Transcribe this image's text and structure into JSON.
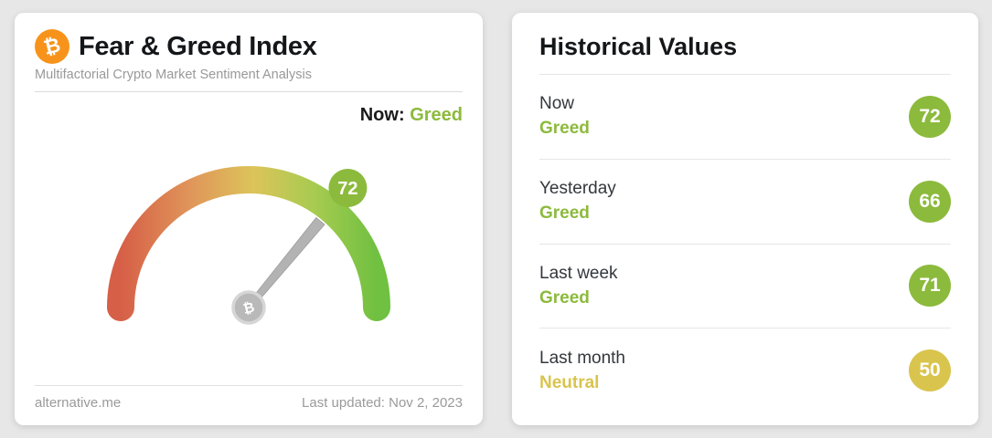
{
  "left_card": {
    "title": "Fear & Greed Index",
    "subtitle": "Multifactorial Crypto Market Sentiment Analysis",
    "now_label": "Now:",
    "now_value": "Greed",
    "footer_left": "alternative.me",
    "footer_right": "Last updated: Nov 2, 2023"
  },
  "chart_data": {
    "type": "gauge",
    "title": "Fear & Greed Index",
    "value": 72,
    "classification": "Greed",
    "min": 0,
    "max": 100,
    "gradient_stops": [
      "#d65f47",
      "#e0975a",
      "#dcc45a",
      "#a6cb50",
      "#70c041"
    ],
    "history": [
      {
        "label": "Now",
        "value": 72,
        "classification": "Greed"
      },
      {
        "label": "Yesterday",
        "value": 66,
        "classification": "Greed"
      },
      {
        "label": "Last week",
        "value": 71,
        "classification": "Greed"
      },
      {
        "label": "Last month",
        "value": 50,
        "classification": "Neutral"
      }
    ]
  },
  "historical": {
    "title": "Historical Values",
    "rows": [
      {
        "label": "Now",
        "classification": "Greed",
        "value": 72,
        "color": "#8cba3c"
      },
      {
        "label": "Yesterday",
        "classification": "Greed",
        "value": 66,
        "color": "#8cba3c"
      },
      {
        "label": "Last week",
        "classification": "Greed",
        "value": 71,
        "color": "#8cba3c"
      },
      {
        "label": "Last month",
        "classification": "Neutral",
        "value": 50,
        "color": "#d9c44d"
      }
    ]
  },
  "colors": {
    "greed_green": "#8cba3c",
    "neutral_yellow": "#d9c44d",
    "bitcoin_orange": "#f7931a",
    "needle_gray": "#b3b3b3"
  },
  "icons": {
    "bitcoin_icon": "₿"
  }
}
